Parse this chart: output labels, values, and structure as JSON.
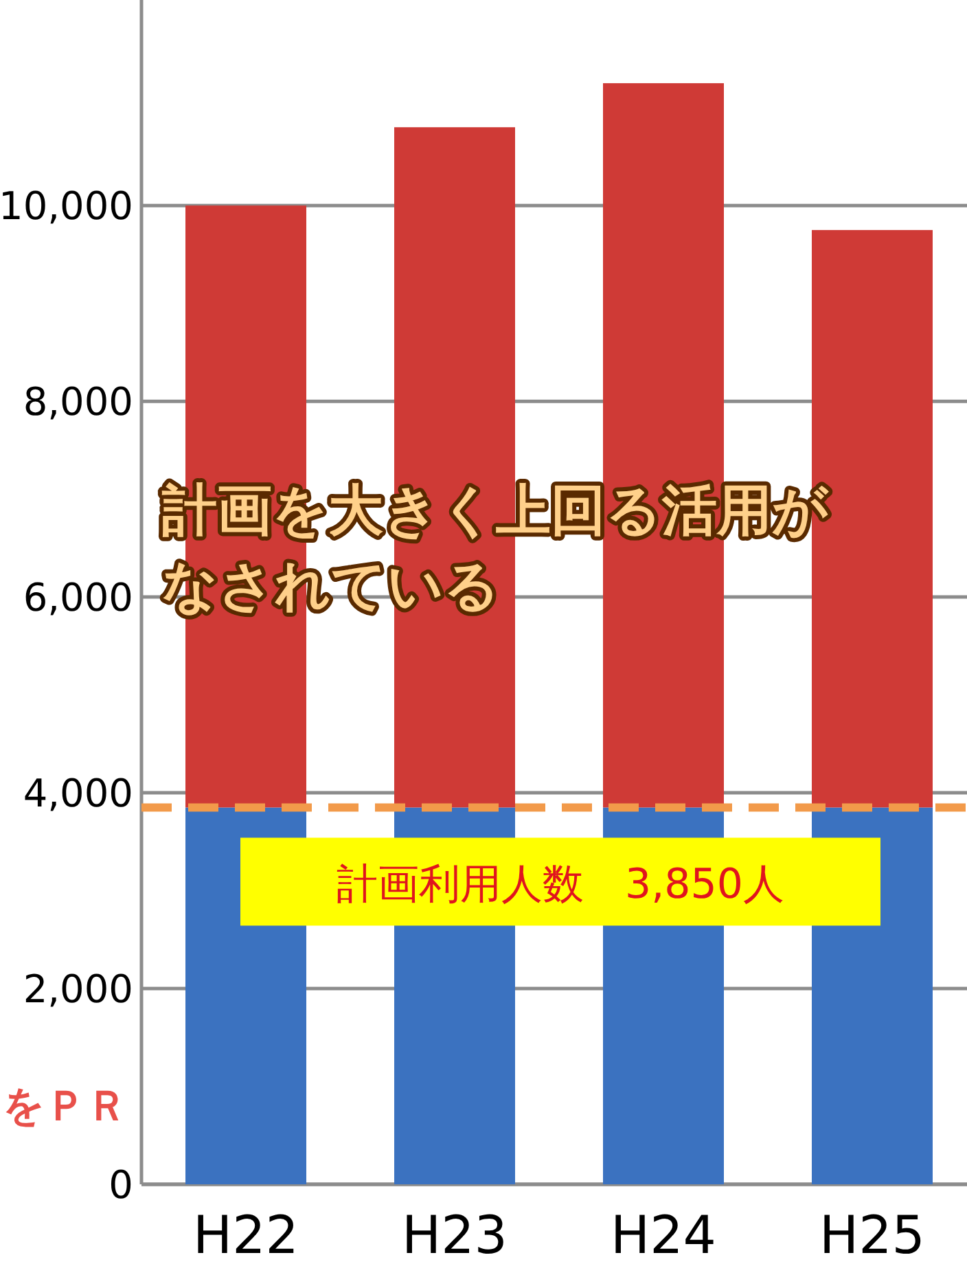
{
  "chart_data": {
    "type": "bar",
    "stacked": true,
    "categories": [
      "H22",
      "H23",
      "H24",
      "H25"
    ],
    "series": [
      {
        "color": "#3b72c0",
        "values": [
          3850,
          3850,
          3850,
          3850
        ]
      },
      {
        "color": "#cf3a36",
        "values": [
          6150,
          6950,
          7400,
          5900
        ]
      }
    ],
    "ylim": [
      0,
      12100
    ],
    "yticks": [
      0,
      {
        "value": 2000,
        "label": "2,000"
      },
      {
        "value": 4000,
        "label": "4,000"
      },
      {
        "value": 6000,
        "label": "6,000"
      },
      {
        "value": 8000,
        "label": "8,000"
      },
      {
        "value": 10000,
        "label": "10,000"
      }
    ],
    "grid": "y",
    "ref_lines": [
      {
        "axis": "y",
        "value": 3850,
        "label": "計画利用人数　3,850人",
        "color": "#f29a4a",
        "line_style": "dashed"
      }
    ],
    "annotations": [
      "計画を大きく上回る活用がなされている",
      "をＰＲ"
    ]
  }
}
